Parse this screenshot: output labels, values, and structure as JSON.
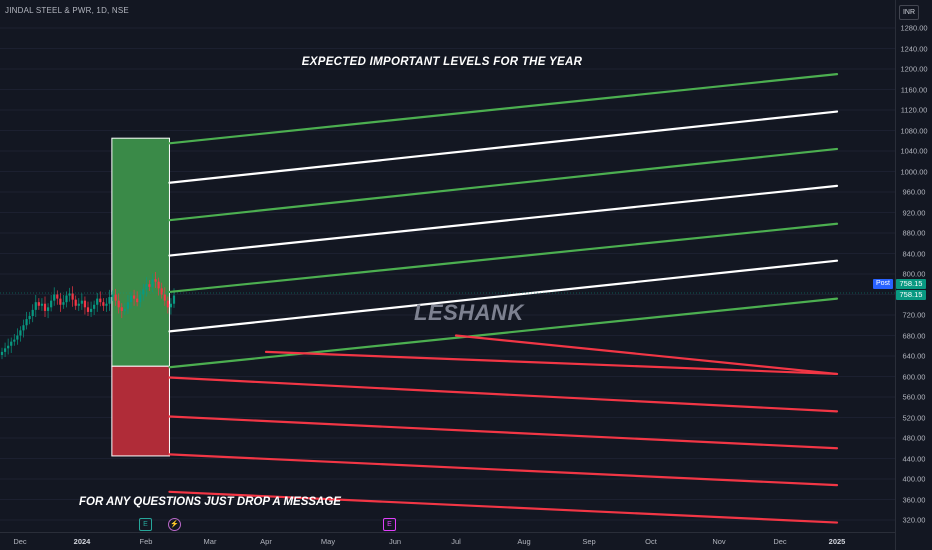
{
  "header": {
    "symbol": "JINDAL STEEL & PWR, 1D, NSE",
    "currency": "INR"
  },
  "annotations": {
    "headline": "EXPECTED IMPORTANT LEVELS FOR THE YEAR",
    "footer": "FOR ANY QUESTIONS JUST DROP A MESSAGE",
    "watermark": "LESHANK"
  },
  "price_axis": {
    "ticks": [
      "1280.00",
      "1240.00",
      "1200.00",
      "1160.00",
      "1120.00",
      "1080.00",
      "1040.00",
      "1000.00",
      "960.00",
      "920.00",
      "880.00",
      "840.00",
      "800.00",
      "760.00",
      "720.00",
      "680.00",
      "640.00",
      "600.00",
      "560.00",
      "520.00",
      "480.00",
      "440.00",
      "400.00",
      "360.00",
      "320.00"
    ],
    "post_label": "Post",
    "post_price": "758.15",
    "last_price": "758.15"
  },
  "time_axis": {
    "ticks": [
      {
        "label": "Dec",
        "bold": false
      },
      {
        "label": "2024",
        "bold": true
      },
      {
        "label": "Feb",
        "bold": false
      },
      {
        "label": "Mar",
        "bold": false
      },
      {
        "label": "Apr",
        "bold": false
      },
      {
        "label": "May",
        "bold": false
      },
      {
        "label": "Jun",
        "bold": false
      },
      {
        "label": "Jul",
        "bold": false
      },
      {
        "label": "Aug",
        "bold": false
      },
      {
        "label": "Sep",
        "bold": false
      },
      {
        "label": "Oct",
        "bold": false
      },
      {
        "label": "Nov",
        "bold": false
      },
      {
        "label": "Dec",
        "bold": false
      },
      {
        "label": "2025",
        "bold": true
      }
    ]
  },
  "events": {
    "earnings_1": "E",
    "dividend": "⚡",
    "earnings_2": "E"
  },
  "colors": {
    "background": "#131722",
    "support_green": "#4caf50",
    "neutral_white": "#ffffff",
    "resistance_red": "#f23645",
    "zone_green": "#3a8a48",
    "zone_red": "#b02c38",
    "candle_up": "#089981",
    "candle_down": "#f23645"
  },
  "chart_data": {
    "type": "line",
    "description_units": "INR price levels, dates",
    "ylim": [
      300,
      1300
    ],
    "zones": [
      {
        "name": "green-zone",
        "from_price": 620,
        "to_price": 1065,
        "start": "2024-01-15",
        "end": "2024-02-12",
        "color": "#3a8a48"
      },
      {
        "name": "red-zone",
        "from_price": 445,
        "to_price": 620,
        "start": "2024-01-15",
        "end": "2024-02-12",
        "color": "#b02c38"
      }
    ],
    "series": [
      {
        "color": "green",
        "start_date": "2024-02-12",
        "start_price": 1055,
        "end_date": "2025-01-01",
        "end_price": 1190
      },
      {
        "color": "white",
        "start_date": "2024-02-12",
        "start_price": 978,
        "end_date": "2025-01-01",
        "end_price": 1117
      },
      {
        "color": "green",
        "start_date": "2024-02-12",
        "start_price": 905,
        "end_date": "2025-01-01",
        "end_price": 1044
      },
      {
        "color": "white",
        "start_date": "2024-02-12",
        "start_price": 836,
        "end_date": "2025-01-01",
        "end_price": 972
      },
      {
        "color": "green",
        "start_date": "2024-02-12",
        "start_price": 765,
        "end_date": "2025-01-01",
        "end_price": 898
      },
      {
        "color": "white",
        "start_date": "2024-02-12",
        "start_price": 688,
        "end_date": "2025-01-01",
        "end_price": 826
      },
      {
        "color": "green",
        "start_date": "2024-02-12",
        "start_price": 618,
        "end_date": "2025-01-01",
        "end_price": 752
      },
      {
        "color": "red",
        "start_date": "2024-04-01",
        "start_price": 648,
        "end_date": "2025-01-01",
        "end_price": 605
      },
      {
        "color": "red",
        "start_date": "2024-07-01",
        "start_price": 680,
        "end_date": "2025-01-01",
        "end_price": 605
      },
      {
        "color": "red",
        "start_date": "2024-02-12",
        "start_price": 598,
        "end_date": "2025-01-01",
        "end_price": 532
      },
      {
        "color": "red",
        "start_date": "2024-02-12",
        "start_price": 522,
        "end_date": "2025-01-01",
        "end_price": 460
      },
      {
        "color": "red",
        "start_date": "2024-02-12",
        "start_price": 448,
        "end_date": "2025-01-01",
        "end_price": 388
      },
      {
        "color": "red",
        "start_date": "2024-02-12",
        "start_price": 375,
        "end_date": "2025-01-01",
        "end_price": 315
      }
    ],
    "price_history_close": [
      648,
      655,
      660,
      668,
      672,
      680,
      690,
      700,
      712,
      718,
      730,
      745,
      738,
      742,
      728,
      735,
      748,
      760,
      752,
      740,
      745,
      758,
      762,
      750,
      738,
      742,
      748,
      735,
      726,
      732,
      740,
      752,
      745,
      738,
      742,
      755,
      760,
      748,
      735,
      728,
      732,
      745,
      758,
      752,
      745,
      760,
      770,
      780,
      775,
      790,
      785,
      772,
      760,
      748,
      735,
      742,
      758
    ]
  }
}
